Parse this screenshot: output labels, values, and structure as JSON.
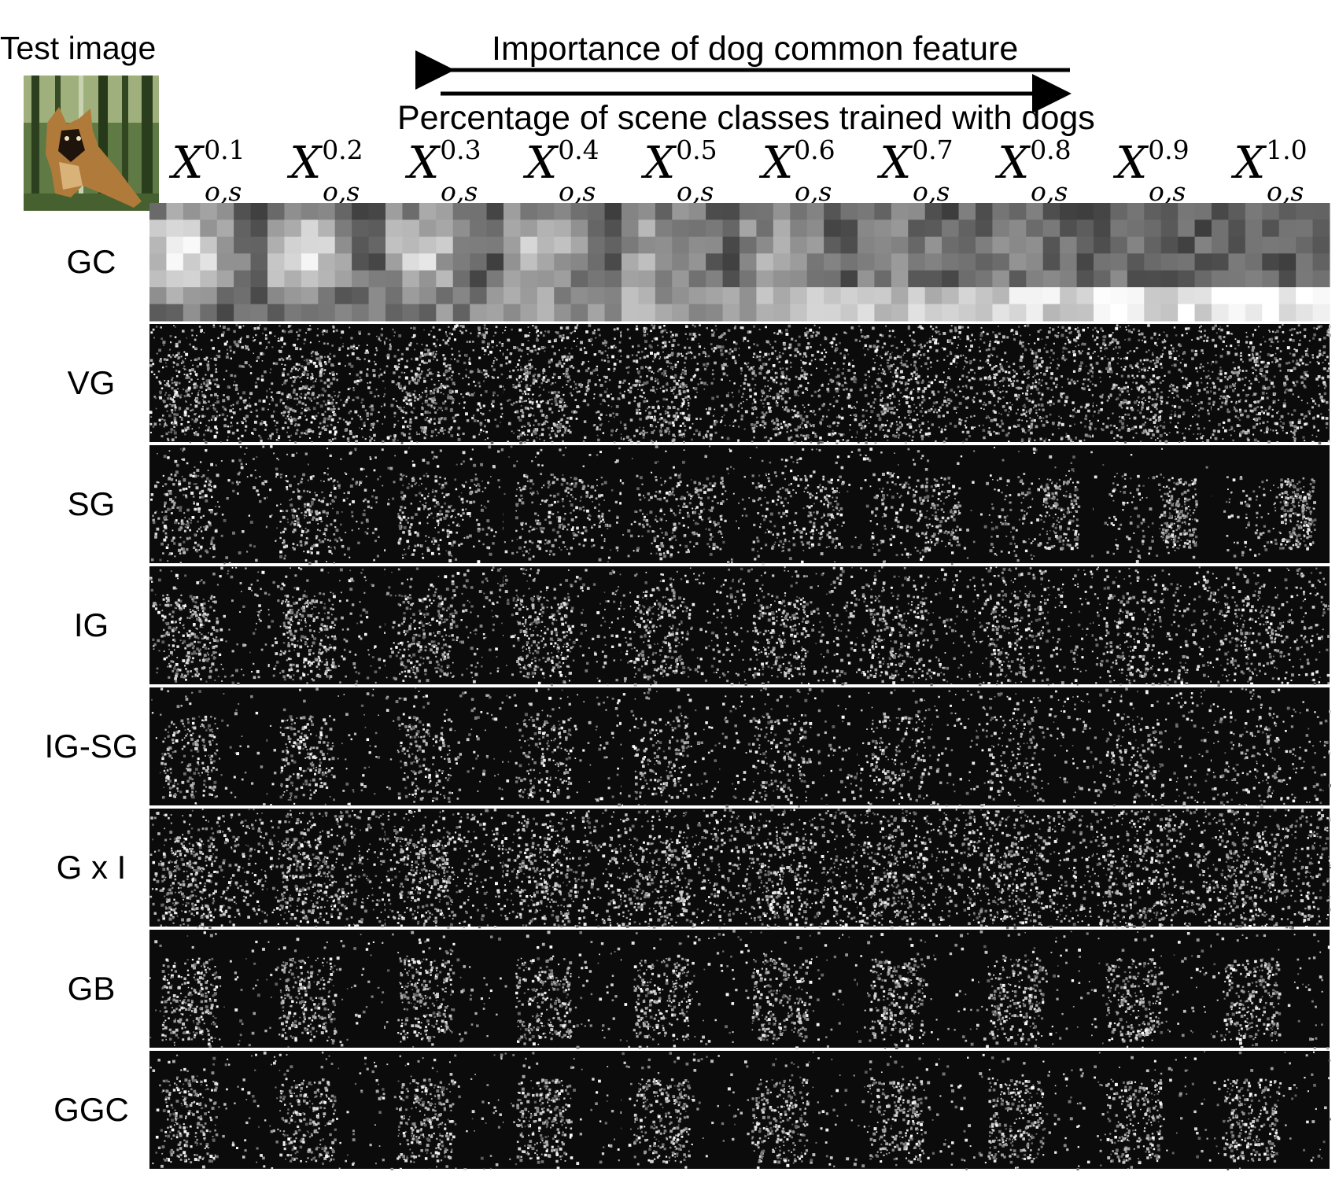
{
  "test_image": {
    "title": "Test image"
  },
  "header": {
    "arrow_left_label": "Importance of dog common feature",
    "arrow_right_label": "Percentage of scene classes trained with dogs"
  },
  "columns": [
    {
      "base": "X",
      "superscript": "0.1",
      "subscript": "o,s"
    },
    {
      "base": "X",
      "superscript": "0.2",
      "subscript": "o,s"
    },
    {
      "base": "X",
      "superscript": "0.3",
      "subscript": "o,s"
    },
    {
      "base": "X",
      "superscript": "0.4",
      "subscript": "o,s"
    },
    {
      "base": "X",
      "superscript": "0.5",
      "subscript": "o,s"
    },
    {
      "base": "X",
      "superscript": "0.6",
      "subscript": "o,s"
    },
    {
      "base": "X",
      "superscript": "0.7",
      "subscript": "o,s"
    },
    {
      "base": "X",
      "superscript": "0.8",
      "subscript": "o,s"
    },
    {
      "base": "X",
      "superscript": "0.9",
      "subscript": "o,s"
    },
    {
      "base": "X",
      "superscript": "1.0",
      "subscript": "o,s"
    }
  ],
  "rows": [
    {
      "label": "GC"
    },
    {
      "label": "VG"
    },
    {
      "label": "SG"
    },
    {
      "label": "IG"
    },
    {
      "label": "IG-SG"
    },
    {
      "label": "G x I"
    },
    {
      "label": "GB"
    },
    {
      "label": "GGC"
    }
  ],
  "colors": {
    "background": "#ffffff",
    "map_background": "#0b0b0b",
    "highlight": "#f2f2f2",
    "text": "#000000"
  }
}
